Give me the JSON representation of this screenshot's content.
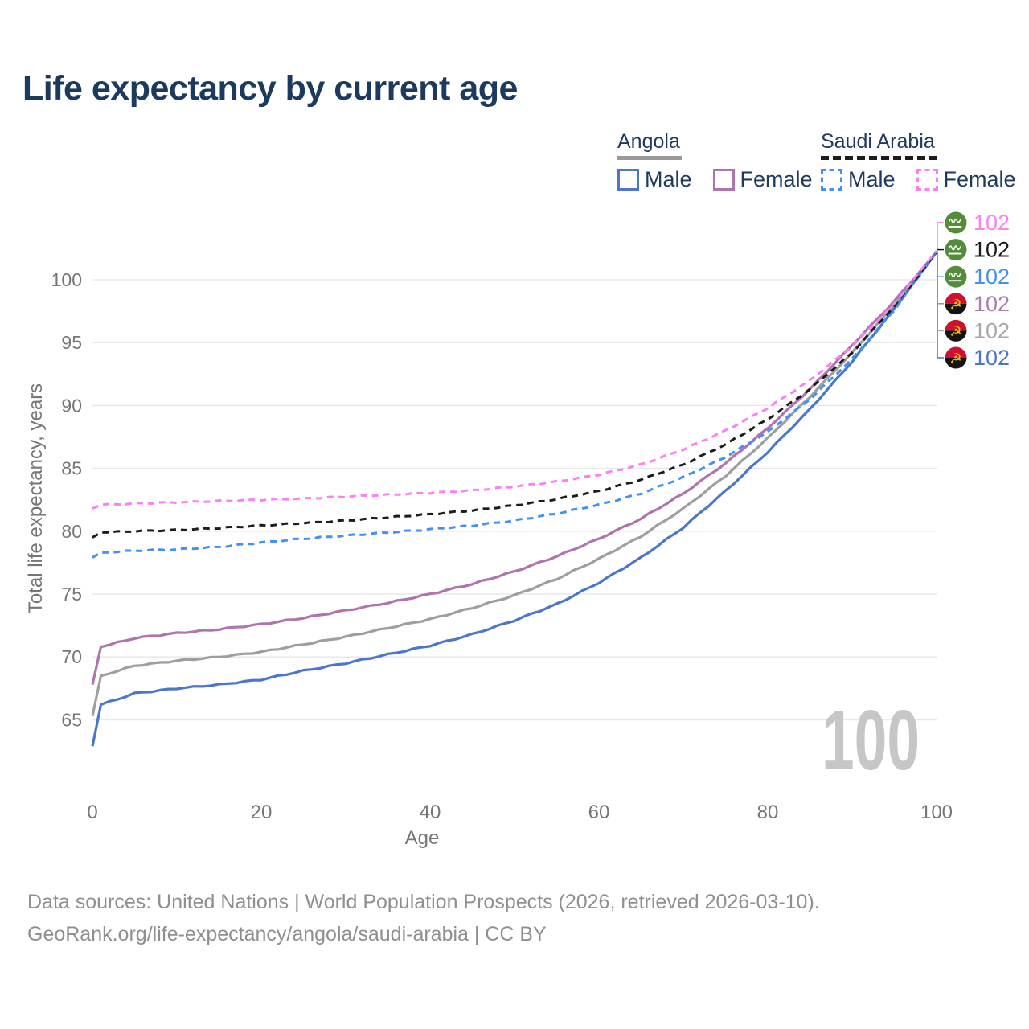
{
  "title": "Life expectancy by current age",
  "legend": {
    "angola": {
      "country": "Angola",
      "line_style": "solid",
      "underline_color": "#9a9a9a",
      "male_label": "Male",
      "male_color": "#4a77c9",
      "female_label": "Female",
      "female_color": "#b173ae"
    },
    "saudi_arabia": {
      "country": "Saudi Arabia",
      "line_style": "dashed",
      "underline_color": "#1c1c1c",
      "male_label": "Male",
      "male_color": "#4191f5",
      "female_label": "Female",
      "female_color": "#fc80f2"
    }
  },
  "chart_data": {
    "type": "line",
    "title": "Life expectancy by current age",
    "xlabel": "Age",
    "ylabel": "Total life expectancy, years",
    "xlim": [
      0,
      100
    ],
    "ylim": [
      62,
      103
    ],
    "x_ticks": [
      0,
      20,
      40,
      60,
      80,
      100
    ],
    "y_ticks": [
      65,
      70,
      75,
      80,
      85,
      90,
      95,
      100
    ],
    "grid": "horizontal",
    "legend_position": "top-right",
    "watermark": "100",
    "x": [
      0,
      1,
      5,
      10,
      15,
      20,
      25,
      30,
      35,
      40,
      45,
      50,
      55,
      60,
      65,
      70,
      75,
      80,
      85,
      90,
      95,
      100
    ],
    "series": [
      {
        "name": "Angola",
        "slug": "angola-total",
        "country": "angola",
        "sex": "total",
        "color": "#9e9e9e",
        "dashed": false,
        "values": [
          65.3,
          68.5,
          69.3,
          69.7,
          70.0,
          70.4,
          71.0,
          71.6,
          72.3,
          73.0,
          73.9,
          74.9,
          76.2,
          77.8,
          79.6,
          81.8,
          84.4,
          87.4,
          90.7,
          94.2,
          98.0,
          102.2
        ]
      },
      {
        "name": "Angola Female",
        "slug": "angola-female",
        "country": "angola",
        "sex": "female",
        "color": "#b173ae",
        "dashed": false,
        "values": [
          67.8,
          70.8,
          71.5,
          71.9,
          72.2,
          72.6,
          73.1,
          73.7,
          74.3,
          75.0,
          75.8,
          76.8,
          78.0,
          79.4,
          81.0,
          83.0,
          85.4,
          88.2,
          91.3,
          94.8,
          98.3,
          102.2
        ]
      },
      {
        "name": "Angola Male",
        "slug": "angola-male",
        "country": "angola",
        "sex": "male",
        "color": "#4a77c9",
        "dashed": false,
        "values": [
          62.9,
          66.2,
          67.1,
          67.5,
          67.8,
          68.2,
          68.9,
          69.5,
          70.2,
          70.9,
          71.8,
          72.9,
          74.2,
          75.9,
          77.9,
          80.3,
          83.2,
          86.3,
          89.7,
          93.5,
          97.7,
          102.2
        ]
      },
      {
        "name": "Saudi Arabia Male",
        "slug": "saudi-arabia-male",
        "country": "saudi-arabia",
        "sex": "male",
        "color": "#4191f5",
        "dashed": true,
        "values": [
          77.9,
          78.3,
          78.45,
          78.55,
          78.75,
          79.1,
          79.4,
          79.65,
          79.9,
          80.15,
          80.45,
          80.85,
          81.4,
          82.1,
          83.0,
          84.3,
          85.9,
          87.9,
          90.5,
          93.7,
          97.6,
          102.2
        ]
      },
      {
        "name": "Saudi Arabia",
        "slug": "saudi-arabia-total",
        "country": "saudi-arabia",
        "sex": "total",
        "color": "#1c1c1c",
        "dashed": true,
        "values": [
          79.5,
          79.9,
          80.0,
          80.1,
          80.25,
          80.45,
          80.65,
          80.85,
          81.1,
          81.35,
          81.65,
          82.05,
          82.55,
          83.2,
          84.1,
          85.3,
          86.9,
          88.9,
          91.3,
          94.2,
          97.9,
          102.2
        ]
      },
      {
        "name": "Saudi Arabia Female",
        "slug": "saudi-arabia-female",
        "country": "saudi-arabia",
        "sex": "female",
        "color": "#fc80f2",
        "dashed": true,
        "values": [
          81.8,
          82.1,
          82.2,
          82.3,
          82.4,
          82.5,
          82.6,
          82.75,
          82.9,
          83.05,
          83.25,
          83.55,
          83.95,
          84.5,
          85.3,
          86.5,
          88.0,
          89.8,
          92.0,
          94.7,
          98.1,
          102.3
        ]
      }
    ],
    "end_labels": [
      {
        "series": "Saudi Arabia Female",
        "flag": "saudi-arabia",
        "value": "102",
        "color": "#fc80f2"
      },
      {
        "series": "Saudi Arabia",
        "flag": "saudi-arabia",
        "value": "102",
        "color": "#1c1c1c"
      },
      {
        "series": "Saudi Arabia Male",
        "flag": "saudi-arabia",
        "value": "102",
        "color": "#4191f5"
      },
      {
        "series": "Angola Female",
        "flag": "angola",
        "value": "102",
        "color": "#a97fb3"
      },
      {
        "series": "Angola",
        "flag": "angola",
        "value": "102",
        "color": "#a8a8a8"
      },
      {
        "series": "Angola Male",
        "flag": "angola",
        "value": "102",
        "color": "#4a77c9"
      }
    ],
    "colors": {
      "grid": "#e9e9e9",
      "axis_text": "#767676",
      "watermark": "#c6c6c6",
      "saudi_flag_green": "#538d3b",
      "angola_flag_red": "#d01030",
      "angola_flag_black": "#141414",
      "angola_flag_yellow": "#f5c400"
    }
  },
  "footer": {
    "line1": "Data sources: United Nations | World Population Prospects (2026, retrieved 2026-03-10).",
    "line2": "GeoRank.org/life-expectancy/angola/saudi-arabia | CC BY"
  }
}
